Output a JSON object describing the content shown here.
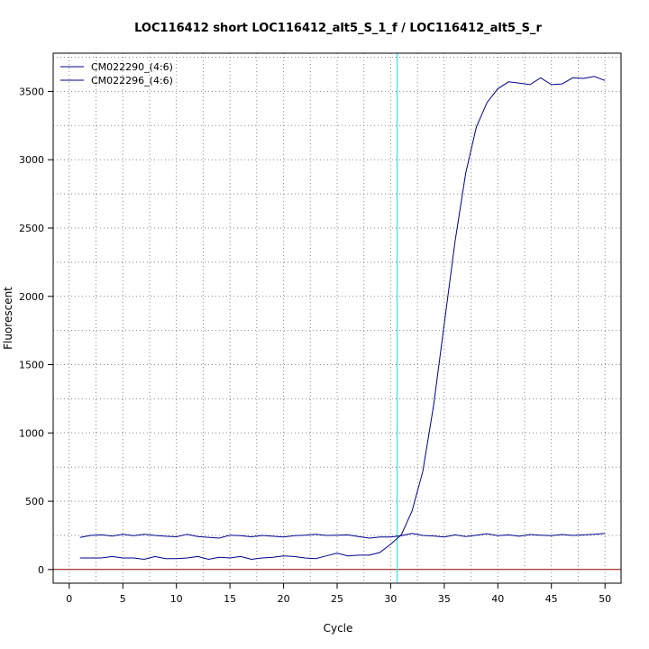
{
  "chart_data": {
    "type": "line",
    "title": "LOC116412 short LOC116412_alt5_S_1_f / LOC116412_alt5_S_r",
    "xlabel": "Cycle",
    "ylabel": "Fluorescent",
    "xlim": [
      -1.5,
      51.5
    ],
    "ylim": [
      -100,
      3780
    ],
    "x_ticks": [
      0,
      5,
      10,
      15,
      20,
      25,
      30,
      35,
      40,
      45,
      50
    ],
    "y_ticks": [
      0,
      500,
      1000,
      1500,
      2000,
      2500,
      3000,
      3500
    ],
    "grid": true,
    "legend_position": "top-left",
    "threshold": {
      "y": 0,
      "color": "#8b0000"
    },
    "cycle_marker": {
      "x": 30.6,
      "color": "#40e0e0"
    },
    "x": [
      1,
      2,
      3,
      4,
      5,
      6,
      7,
      8,
      9,
      10,
      11,
      12,
      13,
      14,
      15,
      16,
      17,
      18,
      19,
      20,
      21,
      22,
      23,
      24,
      25,
      26,
      27,
      28,
      29,
      30,
      31,
      32,
      33,
      34,
      35,
      36,
      37,
      38,
      39,
      40,
      41,
      42,
      43,
      44,
      45,
      46,
      47,
      48,
      49,
      50
    ],
    "series": [
      {
        "name": "CM022290_(4:6)",
        "color": "#00008b",
        "values": [
          235,
          250,
          255,
          245,
          258,
          248,
          258,
          250,
          244,
          240,
          258,
          242,
          236,
          230,
          252,
          248,
          240,
          250,
          244,
          238,
          248,
          252,
          258,
          250,
          252,
          254,
          242,
          230,
          238,
          238,
          248,
          265,
          250,
          246,
          238,
          254,
          242,
          252,
          262,
          248,
          254,
          244,
          256,
          252,
          248,
          256,
          250,
          254,
          258,
          265
        ]
      },
      {
        "name": "CM022296_(4:6)",
        "color": "#00008b",
        "values": [
          85,
          85,
          85,
          95,
          85,
          85,
          75,
          95,
          80,
          80,
          85,
          95,
          75,
          90,
          85,
          95,
          75,
          85,
          90,
          100,
          95,
          85,
          80,
          100,
          120,
          100,
          105,
          105,
          125,
          185,
          255,
          430,
          720,
          1200,
          1800,
          2400,
          2900,
          3240,
          3420,
          3520,
          3570,
          3560,
          3550,
          3600,
          3550,
          3555,
          3600,
          3595,
          3610,
          3580
        ]
      }
    ]
  }
}
